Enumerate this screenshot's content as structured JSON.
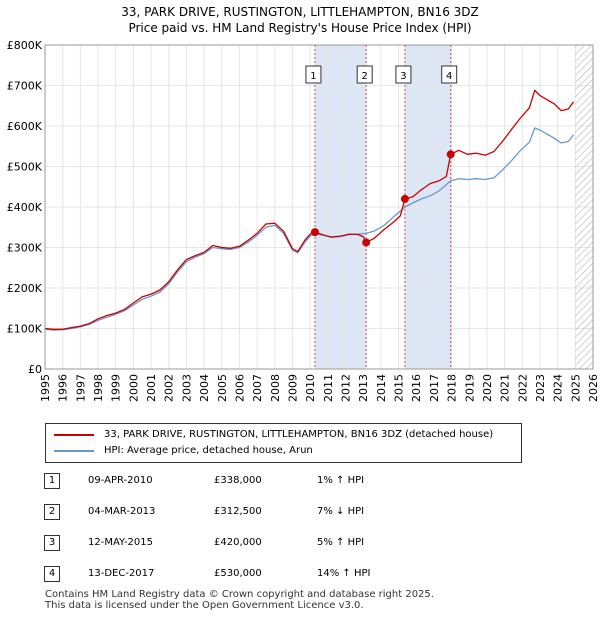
{
  "title_line1": "33, PARK DRIVE, RUSTINGTON, LITTLEHAMPTON, BN16 3DZ",
  "title_line2": "Price paid vs. HM Land Registry's House Price Index (HPI)",
  "colors": {
    "price_line": "#cc0000",
    "hpi_line": "#6699cc",
    "band": "#dde6f5",
    "hatch": "#aaaaaa",
    "grid": "#e6e6e6"
  },
  "chart_data": {
    "type": "line",
    "title": "Price paid vs. HM Land Registry's House Price Index (HPI)",
    "xlabel": "",
    "ylabel": "",
    "xlim": [
      1995,
      2026
    ],
    "ylim": [
      0,
      800000
    ],
    "y_ticks": [
      {
        "value": 0,
        "label": "£0"
      },
      {
        "value": 100000,
        "label": "£100K"
      },
      {
        "value": 200000,
        "label": "£200K"
      },
      {
        "value": 300000,
        "label": "£300K"
      },
      {
        "value": 400000,
        "label": "£400K"
      },
      {
        "value": 500000,
        "label": "£500K"
      },
      {
        "value": 600000,
        "label": "£600K"
      },
      {
        "value": 700000,
        "label": "£700K"
      },
      {
        "value": 800000,
        "label": "£800K"
      }
    ],
    "x_ticks": [
      "1995",
      "1996",
      "1997",
      "1998",
      "1999",
      "2000",
      "2001",
      "2002",
      "2003",
      "2004",
      "2005",
      "2006",
      "2007",
      "2008",
      "2009",
      "2010",
      "2011",
      "2012",
      "2013",
      "2014",
      "2015",
      "2016",
      "2017",
      "2018",
      "2019",
      "2020",
      "2021",
      "2022",
      "2023",
      "2024",
      "2025",
      "2026"
    ],
    "shaded_ranges": [
      [
        2010.27,
        2013.17
      ],
      [
        2015.36,
        2017.95
      ]
    ],
    "future_hatch_from": 2025.0,
    "series": [
      {
        "name": "33, PARK DRIVE, RUSTINGTON, LITTLEHAMPTON, BN16 3DZ (detached house)",
        "color": "#cc0000",
        "points": [
          [
            1995.0,
            100000
          ],
          [
            1995.5,
            98000
          ],
          [
            1996.0,
            98000
          ],
          [
            1996.5,
            102000
          ],
          [
            1997.0,
            106000
          ],
          [
            1997.5,
            112000
          ],
          [
            1998.0,
            124000
          ],
          [
            1998.5,
            132000
          ],
          [
            1999.0,
            138000
          ],
          [
            1999.5,
            147000
          ],
          [
            2000.0,
            163000
          ],
          [
            2000.5,
            178000
          ],
          [
            2001.0,
            185000
          ],
          [
            2001.5,
            195000
          ],
          [
            2002.0,
            215000
          ],
          [
            2002.5,
            245000
          ],
          [
            2003.0,
            270000
          ],
          [
            2003.5,
            280000
          ],
          [
            2004.0,
            288000
          ],
          [
            2004.5,
            305000
          ],
          [
            2005.0,
            300000
          ],
          [
            2005.5,
            298000
          ],
          [
            2006.0,
            303000
          ],
          [
            2006.5,
            318000
          ],
          [
            2007.0,
            335000
          ],
          [
            2007.5,
            358000
          ],
          [
            2008.0,
            360000
          ],
          [
            2008.5,
            340000
          ],
          [
            2009.0,
            297000
          ],
          [
            2009.3,
            290000
          ],
          [
            2009.7,
            318000
          ],
          [
            2010.0,
            333000
          ],
          [
            2010.27,
            338000
          ],
          [
            2010.8,
            330000
          ],
          [
            2011.2,
            326000
          ],
          [
            2011.7,
            328000
          ],
          [
            2012.2,
            333000
          ],
          [
            2012.7,
            332000
          ],
          [
            2013.0,
            327000
          ],
          [
            2013.17,
            312500
          ],
          [
            2013.6,
            322000
          ],
          [
            2014.2,
            345000
          ],
          [
            2014.7,
            362000
          ],
          [
            2015.1,
            378000
          ],
          [
            2015.36,
            420000
          ],
          [
            2015.8,
            425000
          ],
          [
            2016.3,
            443000
          ],
          [
            2016.8,
            458000
          ],
          [
            2017.3,
            465000
          ],
          [
            2017.7,
            475000
          ],
          [
            2017.95,
            530000
          ],
          [
            2018.4,
            540000
          ],
          [
            2018.9,
            530000
          ],
          [
            2019.4,
            533000
          ],
          [
            2019.9,
            528000
          ],
          [
            2020.4,
            537000
          ],
          [
            2020.9,
            563000
          ],
          [
            2021.4,
            592000
          ],
          [
            2021.9,
            620000
          ],
          [
            2022.4,
            645000
          ],
          [
            2022.7,
            688000
          ],
          [
            2023.0,
            675000
          ],
          [
            2023.4,
            665000
          ],
          [
            2023.8,
            655000
          ],
          [
            2024.2,
            638000
          ],
          [
            2024.6,
            642000
          ],
          [
            2024.9,
            660000
          ]
        ]
      },
      {
        "name": "HPI: Average price, detached house, Arun",
        "color": "#6699cc",
        "points": [
          [
            1995.0,
            98000
          ],
          [
            1995.5,
            96000
          ],
          [
            1996.0,
            97000
          ],
          [
            1996.5,
            100000
          ],
          [
            1997.0,
            104000
          ],
          [
            1997.5,
            110000
          ],
          [
            1998.0,
            120000
          ],
          [
            1998.5,
            128000
          ],
          [
            1999.0,
            135000
          ],
          [
            1999.5,
            144000
          ],
          [
            2000.0,
            158000
          ],
          [
            2000.5,
            172000
          ],
          [
            2001.0,
            180000
          ],
          [
            2001.5,
            190000
          ],
          [
            2002.0,
            210000
          ],
          [
            2002.5,
            240000
          ],
          [
            2003.0,
            265000
          ],
          [
            2003.5,
            276000
          ],
          [
            2004.0,
            285000
          ],
          [
            2004.5,
            300000
          ],
          [
            2005.0,
            297000
          ],
          [
            2005.5,
            295000
          ],
          [
            2006.0,
            300000
          ],
          [
            2006.5,
            313000
          ],
          [
            2007.0,
            330000
          ],
          [
            2007.5,
            350000
          ],
          [
            2008.0,
            355000
          ],
          [
            2008.5,
            335000
          ],
          [
            2009.0,
            293000
          ],
          [
            2009.3,
            287000
          ],
          [
            2009.7,
            313000
          ],
          [
            2010.0,
            328000
          ],
          [
            2010.27,
            334000
          ],
          [
            2010.8,
            330000
          ],
          [
            2011.2,
            325000
          ],
          [
            2011.7,
            327000
          ],
          [
            2012.2,
            332000
          ],
          [
            2012.7,
            333000
          ],
          [
            2013.17,
            335000
          ],
          [
            2013.6,
            340000
          ],
          [
            2014.2,
            355000
          ],
          [
            2014.7,
            375000
          ],
          [
            2015.1,
            390000
          ],
          [
            2015.36,
            400000
          ],
          [
            2015.8,
            410000
          ],
          [
            2016.3,
            420000
          ],
          [
            2016.8,
            428000
          ],
          [
            2017.3,
            440000
          ],
          [
            2017.7,
            455000
          ],
          [
            2017.95,
            465000
          ],
          [
            2018.4,
            470000
          ],
          [
            2018.9,
            468000
          ],
          [
            2019.4,
            470000
          ],
          [
            2019.9,
            468000
          ],
          [
            2020.4,
            472000
          ],
          [
            2020.9,
            492000
          ],
          [
            2021.4,
            515000
          ],
          [
            2021.9,
            540000
          ],
          [
            2022.4,
            560000
          ],
          [
            2022.7,
            595000
          ],
          [
            2023.0,
            590000
          ],
          [
            2023.4,
            580000
          ],
          [
            2023.8,
            570000
          ],
          [
            2024.2,
            558000
          ],
          [
            2024.6,
            562000
          ],
          [
            2024.9,
            578000
          ]
        ]
      }
    ],
    "sale_markers": [
      {
        "id": "1",
        "year": 2010.27,
        "price": 338000
      },
      {
        "id": "2",
        "year": 2013.17,
        "price": 312500
      },
      {
        "id": "3",
        "year": 2015.36,
        "price": 420000
      },
      {
        "id": "4",
        "year": 2017.95,
        "price": 530000
      }
    ]
  },
  "legend": {
    "price_label": "33, PARK DRIVE, RUSTINGTON, LITTLEHAMPTON, BN16 3DZ (detached house)",
    "hpi_label": "HPI: Average price, detached house, Arun"
  },
  "sales": [
    {
      "num": "1",
      "date": "09-APR-2010",
      "price": "£338,000",
      "hpi": "1% ↑ HPI"
    },
    {
      "num": "2",
      "date": "04-MAR-2013",
      "price": "£312,500",
      "hpi": "7% ↓ HPI"
    },
    {
      "num": "3",
      "date": "12-MAY-2015",
      "price": "£420,000",
      "hpi": "5% ↑ HPI"
    },
    {
      "num": "4",
      "date": "13-DEC-2017",
      "price": "£530,000",
      "hpi": "14% ↑ HPI"
    }
  ],
  "footer": {
    "line1": "Contains HM Land Registry data © Crown copyright and database right 2025.",
    "line2": "This data is licensed under the Open Government Licence v3.0."
  }
}
